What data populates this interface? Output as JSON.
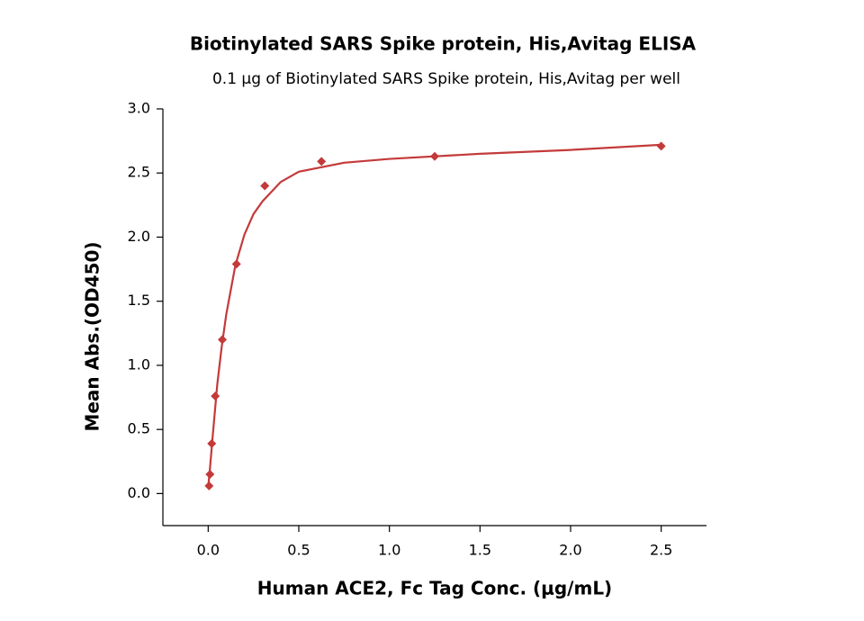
{
  "chart_data": {
    "type": "scatter",
    "title": "Biotinylated SARS Spike protein, His,Avitag ELISA",
    "subtitle": "0.1 μg of Biotinylated SARS Spike protein, His,Avitag per well",
    "x_label": "Human ACE2, Fc Tag Conc. (μg/mL)",
    "y_label": "Mean Abs.(OD450)",
    "xlim": [
      -0.25,
      2.75
    ],
    "ylim": [
      -0.25,
      3.0
    ],
    "xticks": [
      {
        "value": 0,
        "label": "0.0"
      },
      0.5,
      {
        "value": 1,
        "label": "1.0"
      },
      1.5,
      {
        "value": 2,
        "label": "2.0"
      },
      2.5
    ],
    "yticks": [
      {
        "value": 0,
        "label": "0.0"
      },
      0.5,
      {
        "value": 1,
        "label": "1.0"
      },
      1.5,
      {
        "value": 2,
        "label": "2.0"
      },
      2.5,
      {
        "value": 3,
        "label": "3.0"
      }
    ],
    "series": [
      {
        "kind": "points",
        "color": "#c43a3a",
        "x": [
          0.0049,
          0.0098,
          0.0195,
          0.039,
          0.078,
          0.156,
          0.3125,
          0.625,
          1.25,
          2.5
        ],
        "values": [
          0.06,
          0.15,
          0.39,
          0.76,
          1.2,
          1.79,
          2.4,
          2.59,
          2.63,
          2.71
        ]
      },
      {
        "kind": "curve",
        "color": "#c43a3a",
        "x": [
          0,
          0.01,
          0.025,
          0.05,
          0.075,
          0.1,
          0.15,
          0.2,
          0.25,
          0.3,
          0.4,
          0.5,
          0.75,
          1.0,
          1.5,
          2.0,
          2.5
        ],
        "values": [
          0.05,
          0.2,
          0.45,
          0.85,
          1.15,
          1.4,
          1.78,
          2.02,
          2.18,
          2.28,
          2.43,
          2.51,
          2.58,
          2.61,
          2.65,
          2.68,
          2.72
        ]
      }
    ]
  }
}
